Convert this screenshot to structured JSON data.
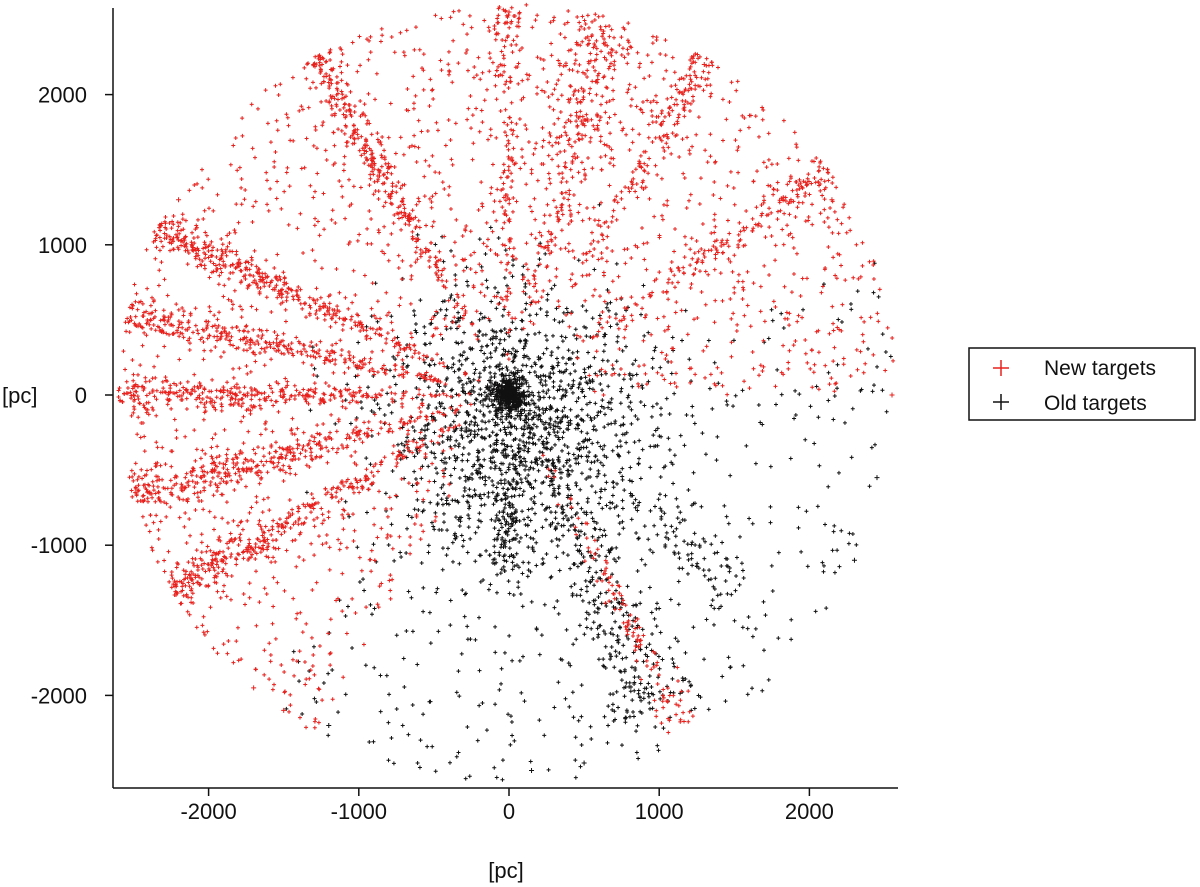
{
  "chart_data": {
    "type": "scatter",
    "title": "",
    "xlabel": "[pc]",
    "ylabel": "[pc]",
    "xlim": [
      -2600,
      2600
    ],
    "ylim": [
      -2600,
      2600
    ],
    "x_ticks": [
      -2000,
      -1000,
      0,
      1000,
      2000
    ],
    "y_ticks": [
      -2000,
      -1000,
      0,
      1000,
      2000
    ],
    "grid": false,
    "legend_position": "right",
    "marker": "+",
    "series": [
      {
        "name": "New targets",
        "color": "#e8201c",
        "streaks": [
          {
            "angle_deg": 90,
            "r_range": [
              0,
              2600
            ],
            "density": 55,
            "spread_deg": 3
          },
          {
            "angle_deg": 120,
            "r_range": [
              300,
              2600
            ],
            "density": 130,
            "spread_deg": 3
          },
          {
            "angle_deg": 155,
            "r_range": [
              200,
              2600
            ],
            "density": 150,
            "spread_deg": 3
          },
          {
            "angle_deg": 168,
            "r_range": [
              200,
              2600
            ],
            "density": 130,
            "spread_deg": 3
          },
          {
            "angle_deg": 180,
            "r_range": [
              200,
              2600
            ],
            "density": 130,
            "spread_deg": 3
          },
          {
            "angle_deg": 195,
            "r_range": [
              200,
              2600
            ],
            "density": 150,
            "spread_deg": 4
          },
          {
            "angle_deg": 210,
            "r_range": [
              300,
              2600
            ],
            "density": 150,
            "spread_deg": 4
          },
          {
            "angle_deg": 75,
            "r_range": [
              400,
              2600
            ],
            "density": 130,
            "spread_deg": 7
          },
          {
            "angle_deg": 60,
            "r_range": [
              600,
              2600
            ],
            "density": 80,
            "spread_deg": 3
          },
          {
            "angle_deg": 35,
            "r_range": [
              600,
              2600
            ],
            "density": 80,
            "spread_deg": 3
          },
          {
            "angle_deg": 298,
            "r_range": [
              300,
              2500
            ],
            "density": 55,
            "spread_deg": 3
          }
        ],
        "fan": {
          "angle_range_deg": [
            0,
            240
          ],
          "r_range": [
            500,
            2600
          ],
          "count": 1700
        },
        "points": [
          {
            "x": -2500,
            "y": 0
          },
          {
            "x": -2200,
            "y": 1300
          },
          {
            "x": -1300,
            "y": 2200
          },
          {
            "x": 0,
            "y": 2550
          },
          {
            "x": 1300,
            "y": 2200
          },
          {
            "x": 2150,
            "y": 1300
          },
          {
            "x": 2550,
            "y": 0
          },
          {
            "x": -1700,
            "y": -1950
          },
          {
            "x": -1500,
            "y": -2100
          }
        ]
      },
      {
        "name": "Old targets",
        "color": "#111111",
        "core": {
          "radius": 120,
          "count": 420
        },
        "cloud": {
          "scale": 450,
          "count": 1500
        },
        "streaks": [
          {
            "angle_deg": 270,
            "r_range": [
              0,
              1200
            ],
            "density": 90,
            "spread_deg": 6
          },
          {
            "angle_deg": 295,
            "r_range": [
              300,
              2300
            ],
            "density": 130,
            "spread_deg": 8
          },
          {
            "angle_deg": 320,
            "r_range": [
              300,
              2000
            ],
            "density": 60,
            "spread_deg": 8
          }
        ],
        "fan": {
          "angle_range_deg": [
            -130,
            20
          ],
          "r_range": [
            800,
            2600
          ],
          "count": 420
        },
        "points": [
          {
            "x": 150,
            "y": -2500
          },
          {
            "x": 100,
            "y": -2600
          },
          {
            "x": 2450,
            "y": -550
          },
          {
            "x": 2300,
            "y": -1100
          },
          {
            "x": -1200,
            "y": -2200
          },
          {
            "x": 500,
            "y": -2450
          }
        ]
      }
    ]
  }
}
